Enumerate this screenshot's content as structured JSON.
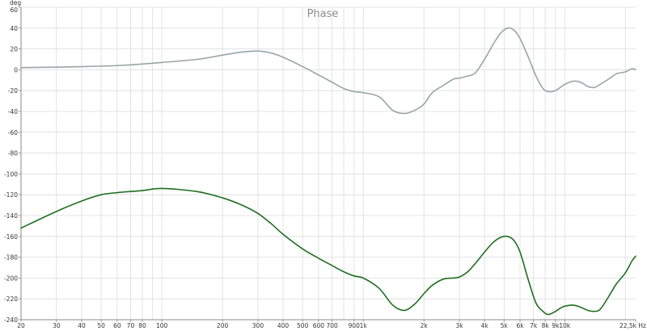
{
  "chart_data": {
    "type": "line",
    "title": "Phase",
    "ylabel": "deg",
    "xunit": "Hz",
    "xscale": "log",
    "xlim": [
      20,
      22500
    ],
    "ylim": [
      -240,
      60
    ],
    "grid": true,
    "legend": "none",
    "x_ticks": [
      {
        "value": 20,
        "label": "20"
      },
      {
        "value": 30,
        "label": "30"
      },
      {
        "value": 40,
        "label": "40"
      },
      {
        "value": 50,
        "label": "50"
      },
      {
        "value": 60,
        "label": "60"
      },
      {
        "value": 70,
        "label": "70"
      },
      {
        "value": 80,
        "label": "80"
      },
      {
        "value": 100,
        "label": "100"
      },
      {
        "value": 200,
        "label": "200"
      },
      {
        "value": 300,
        "label": "300"
      },
      {
        "value": 400,
        "label": "400"
      },
      {
        "value": 500,
        "label": "500"
      },
      {
        "value": 600,
        "label": "600"
      },
      {
        "value": 700,
        "label": "700"
      },
      {
        "value": 900,
        "label": "900"
      },
      {
        "value": 1000,
        "label": "1k"
      },
      {
        "value": 2000,
        "label": "2k"
      },
      {
        "value": 3000,
        "label": "3k"
      },
      {
        "value": 4000,
        "label": "4k"
      },
      {
        "value": 5000,
        "label": "5k"
      },
      {
        "value": 6000,
        "label": "6k"
      },
      {
        "value": 7000,
        "label": "7k"
      },
      {
        "value": 8000,
        "label": "8k"
      },
      {
        "value": 9000,
        "label": "9k"
      },
      {
        "value": 10000,
        "label": "10k"
      },
      {
        "value": 22500,
        "label": "22,5k Hz"
      }
    ],
    "y_ticks": [
      60,
      40,
      20,
      0,
      -20,
      -40,
      -60,
      -80,
      -100,
      -120,
      -140,
      -160,
      -180,
      -200,
      -220,
      -240
    ],
    "colors": {
      "series_gray": "#98a5a5",
      "series_green": "#1f6e1f",
      "grid": "#dcdcdc",
      "axis": "#888888",
      "title": "#8a8a8a"
    },
    "series": [
      {
        "color": "#98a5a5",
        "x": [
          20,
          30,
          40,
          50,
          60,
          80,
          100,
          150,
          200,
          250,
          300,
          350,
          400,
          500,
          600,
          700,
          800,
          900,
          1000,
          1200,
          1400,
          1600,
          1800,
          2000,
          2200,
          2500,
          2800,
          3000,
          3300,
          3600,
          4000,
          4400,
          4800,
          5200,
          5600,
          6000,
          6600,
          7200,
          7800,
          8300,
          9000,
          9500,
          10000,
          11000,
          12000,
          13000,
          14000,
          15000,
          16500,
          18000,
          20000,
          21500,
          22500
        ],
        "y": [
          2,
          2.5,
          3,
          3.5,
          4,
          5.5,
          7,
          10,
          14,
          17,
          18,
          16,
          12,
          3,
          -5,
          -12,
          -18,
          -21,
          -22,
          -26,
          -39,
          -42,
          -39,
          -33,
          -22,
          -15,
          -9,
          -8,
          -6,
          -3,
          10,
          24,
          35,
          40,
          38,
          30,
          12,
          -6,
          -18,
          -21,
          -20,
          -17,
          -14,
          -11,
          -12,
          -16,
          -17,
          -14,
          -9,
          -4,
          -2,
          1,
          0
        ]
      },
      {
        "color": "#1f6e1f",
        "x": [
          20,
          30,
          40,
          50,
          60,
          80,
          100,
          150,
          200,
          250,
          300,
          350,
          400,
          500,
          600,
          700,
          800,
          900,
          1000,
          1200,
          1400,
          1600,
          1800,
          2000,
          2200,
          2500,
          2800,
          3000,
          3300,
          3600,
          4000,
          4400,
          4800,
          5200,
          5600,
          6000,
          6600,
          7200,
          7800,
          8300,
          9000,
          9500,
          10000,
          11000,
          12000,
          13000,
          14000,
          15000,
          16500,
          18000,
          20000,
          21500,
          22500
        ],
        "y": [
          -152,
          -136,
          -126,
          -120,
          -118,
          -116,
          -114,
          -117,
          -123,
          -130,
          -138,
          -148,
          -158,
          -172,
          -181,
          -188,
          -194,
          -198,
          -200,
          -210,
          -226,
          -231,
          -225,
          -215,
          -207,
          -201,
          -200,
          -199,
          -194,
          -186,
          -175,
          -166,
          -161,
          -160,
          -164,
          -175,
          -202,
          -224,
          -232,
          -235,
          -232,
          -229,
          -227,
          -226,
          -228,
          -231,
          -232,
          -230,
          -218,
          -206,
          -195,
          -184,
          -179
        ]
      }
    ]
  }
}
